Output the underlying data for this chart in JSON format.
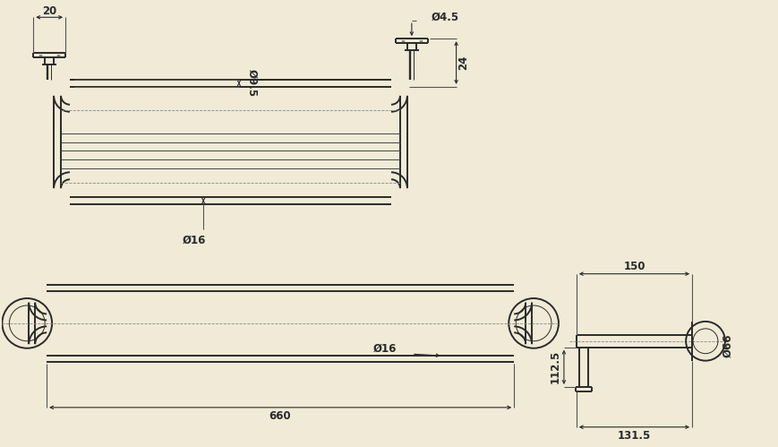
{
  "bg_color": "#f0ead6",
  "line_color": "#2a2a2a",
  "lw_main": 1.4,
  "lw_thin": 0.7,
  "lw_dim": 0.8,
  "font_size": 8.5,
  "annotations": {
    "dim_20": "20",
    "dim_4p5": "Ø4.5",
    "dim_9p5": "Ø9.5",
    "dim_16_top": "Ø16",
    "dim_24": "24",
    "dim_16_bot": "Ø16",
    "dim_660": "660",
    "dim_150": "150",
    "dim_112p5": "112.5",
    "dim_66": "Ø66",
    "dim_131p5": "131.5"
  }
}
